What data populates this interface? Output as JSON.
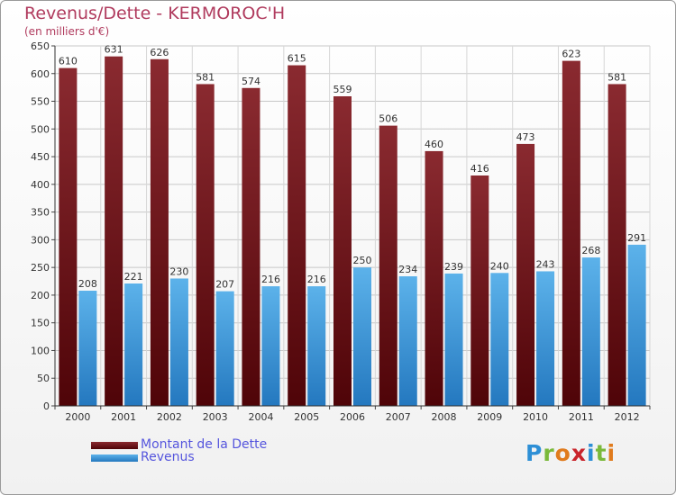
{
  "header": {
    "title": "Revenus/Dette - KERMOROC'H",
    "subtitle": "(en milliers d'€)"
  },
  "legend": [
    {
      "label": "Montant de la Dette",
      "color": "#6e1118"
    },
    {
      "label": "Revenus",
      "color": "#4aa3e0"
    }
  ],
  "logo": {
    "text": "Proxiti",
    "letter_colors": [
      "#2d8fd6",
      "#7ab93a",
      "#e07b1d",
      "#c9242b",
      "#2d8fd6",
      "#7ab93a",
      "#e07b1d"
    ]
  },
  "chart_data": {
    "type": "bar",
    "categories": [
      "2000",
      "2001",
      "2002",
      "2003",
      "2004",
      "2005",
      "2006",
      "2007",
      "2008",
      "2009",
      "2010",
      "2011",
      "2012"
    ],
    "series": [
      {
        "name": "Montant de la Dette",
        "values": [
          610,
          631,
          626,
          581,
          574,
          615,
          559,
          506,
          460,
          416,
          473,
          623,
          581
        ],
        "color": "#6e1118"
      },
      {
        "name": "Revenus",
        "values": [
          208,
          221,
          230,
          207,
          216,
          216,
          250,
          234,
          239,
          240,
          243,
          268,
          291
        ],
        "color": "#4aa3e0"
      }
    ],
    "ylim": [
      0,
      650
    ],
    "yticks": [
      0,
      50,
      100,
      150,
      200,
      250,
      300,
      350,
      400,
      450,
      500,
      550,
      600,
      650
    ],
    "grid": true,
    "legend": "bottom-left"
  }
}
